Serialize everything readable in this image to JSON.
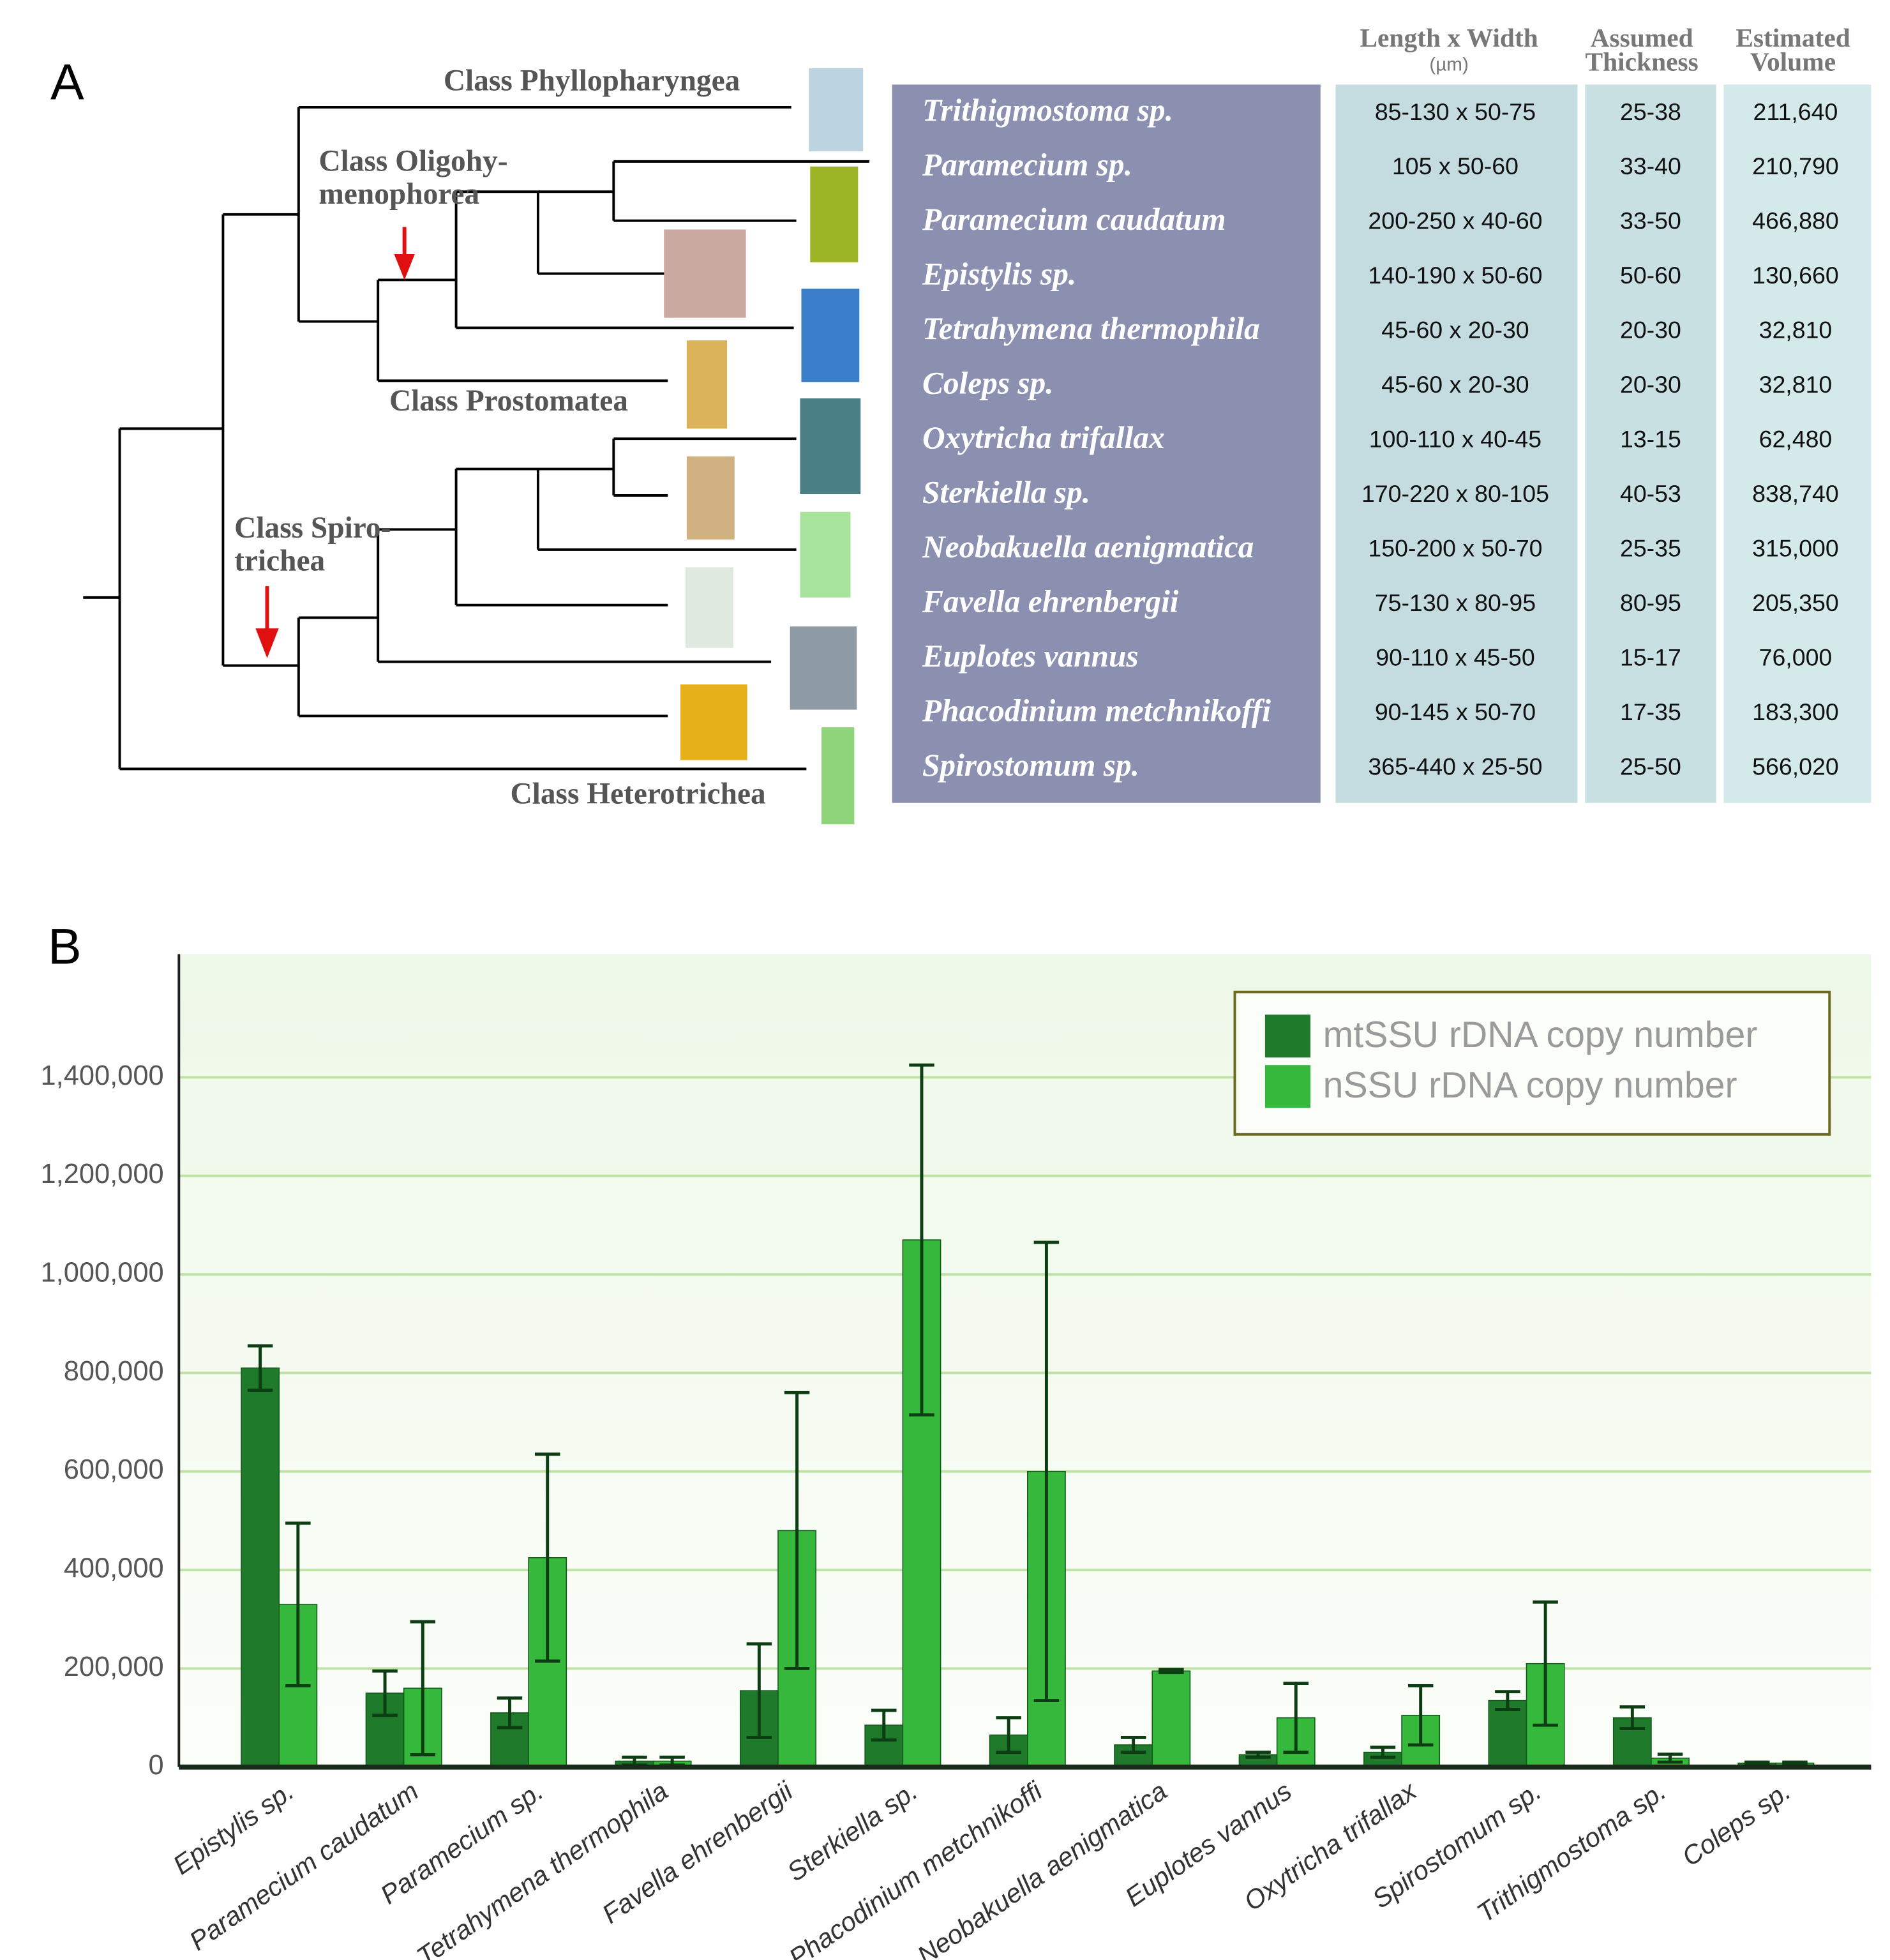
{
  "panel_a": {
    "label": "A",
    "class_labels": [
      [
        "Class Phyllopharyngea"
      ],
      [
        "Class Oligohy-",
        "menophorea"
      ],
      [
        "Class Prostomatea"
      ],
      [
        "Class Spiro-",
        "trichea"
      ],
      [
        "Class Heterotrichea"
      ]
    ],
    "headers": [
      [
        "Length x Width",
        "(µm)"
      ],
      [
        "Assumed",
        "Thickness"
      ],
      [
        "Estimated",
        "Volume"
      ]
    ],
    "rows": [
      [
        "Trithigmostoma  sp.",
        "85-130 x 50-75",
        "25-38",
        "211,640"
      ],
      [
        "Paramecium  sp.",
        "105 x 50-60",
        "33-40",
        "210,790"
      ],
      [
        "Paramecium caudatum",
        "200-250 x 40-60",
        "33-50",
        "466,880"
      ],
      [
        "Epistylis  sp.",
        "140-190 x 50-60",
        "50-60",
        "130,660"
      ],
      [
        "Tetrahymena thermophila",
        "45-60 x 20-30",
        "20-30",
        "32,810"
      ],
      [
        "Coleps  sp.",
        "45-60 x 20-30",
        "20-30",
        "32,810"
      ],
      [
        "Oxytricha trifallax",
        "100-110 x 40-45",
        "13-15",
        "62,480"
      ],
      [
        "Sterkiella  sp.",
        "170-220 x 80-105",
        "40-53",
        "838,740"
      ],
      [
        "Neobakuella aenigmatica",
        "150-200 x 50-70",
        "25-35",
        "315,000"
      ],
      [
        "Favella ehrenbergii",
        "75-130 x 80-95",
        "80-95",
        "205,350"
      ],
      [
        "Euplotes vannus",
        "90-110 x 45-50",
        "15-17",
        "76,000"
      ],
      [
        "Phacodinium metchnikoffi",
        "90-145 x 50-70",
        "17-35",
        "183,300"
      ],
      [
        "Spirostomum  sp.",
        "365-440 x 25-50",
        "25-50",
        "566,020"
      ]
    ]
  },
  "chart_data": {
    "type": "bar",
    "label": "B",
    "categories": [
      "Epistylis sp.",
      "Paramecium caudatum",
      "Paramecium sp.",
      "Tetrahymena thermophila",
      "Favella ehrenbergii",
      "Sterkiella sp.",
      "Phacodinium metchnikoffi",
      "Neobakuella aenigmatica",
      "Euplotes vannus",
      "Oxytricha trifallax",
      "Spirostomum sp.",
      "Trithigmostoma sp.",
      "Coleps sp."
    ],
    "series": [
      {
        "name": "mtSSU rDNA copy number",
        "color": "#1f7a2b",
        "values": [
          810000,
          150000,
          110000,
          12000,
          155000,
          85000,
          65000,
          45000,
          25000,
          30000,
          135000,
          100000,
          8000
        ],
        "errors": [
          45000,
          45000,
          30000,
          8000,
          95000,
          30000,
          35000,
          15000,
          5000,
          10000,
          18000,
          22000,
          2000
        ]
      },
      {
        "name": "nSSU rDNA copy number",
        "color": "#35b83c",
        "values": [
          330000,
          160000,
          425000,
          12000,
          480000,
          1070000,
          600000,
          195000,
          100000,
          105000,
          210000,
          18000,
          8000
        ],
        "errors": [
          165000,
          135000,
          210000,
          8000,
          280000,
          355000,
          465000,
          3000,
          70000,
          60000,
          125000,
          8000,
          2000
        ]
      }
    ],
    "ylim": [
      0,
      1650000
    ],
    "yticks": [
      0,
      {
        "value": 200000,
        "label": "200,000"
      },
      {
        "value": 400000,
        "label": "400,000"
      },
      {
        "value": 600000,
        "label": "600,000"
      },
      {
        "value": 800000,
        "label": "800,000"
      },
      {
        "value": 1000000,
        "label": "1,000,000"
      },
      {
        "value": 1200000,
        "label": "1,200,000"
      },
      {
        "value": 1400000,
        "label": "1,400,000"
      }
    ],
    "grid": true,
    "legend": "top-right"
  }
}
